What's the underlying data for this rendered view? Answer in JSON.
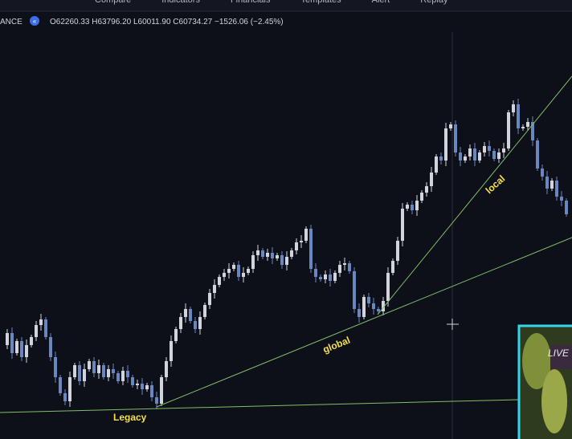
{
  "toolbar": {
    "items": [
      "Compare",
      "Indicators",
      "Financials",
      "Templates",
      "Alert",
      "Replay"
    ]
  },
  "symbol": {
    "exchange": "ANCE",
    "ohlc": "O62260.33 H63796.20 L60011.90 C60734.27 −1526.06 (−2.45%)"
  },
  "annotations": {
    "legacy": "Legacy",
    "global": "global",
    "local": "local"
  },
  "webcam": {
    "badge": "LIVE"
  },
  "chart": {
    "type": "candlestick",
    "up_color": "#d1d4dc",
    "down_color": "#6a86bf",
    "ylim": [
      43800,
      75300
    ],
    "closes": [
      50820,
      51720,
      50220,
      51120,
      49920,
      50820,
      51420,
      52320,
      52740,
      51420,
      49920,
      48420,
      47220,
      46620,
      48420,
      49320,
      48120,
      49020,
      49620,
      48720,
      49320,
      48420,
      49020,
      48720,
      48120,
      48900,
      48420,
      47820,
      47940,
      47520,
      47820,
      46920,
      46440,
      48420,
      49620,
      51120,
      52020,
      52920,
      53520,
      52620,
      52020,
      52920,
      53820,
      54720,
      55320,
      55920,
      56220,
      56520,
      56820,
      55920,
      56220,
      56520,
      57540,
      57900,
      57420,
      57720,
      57300,
      57540,
      56820,
      57420,
      57900,
      58500,
      58620,
      59520,
      56520,
      55920,
      55740,
      56100,
      55620,
      56220,
      56820,
      56940,
      56340,
      53520,
      52920,
      54420,
      53940,
      53520,
      53340,
      54120,
      56220,
      57120,
      58620,
      61020,
      61320,
      60900,
      61620,
      62220,
      62700,
      63720,
      64920,
      64620,
      67020,
      67320,
      65220,
      64620,
      64920,
      65520,
      64620,
      65220,
      65700,
      65340,
      64740,
      65220,
      65520,
      68220,
      68820,
      67020,
      67140,
      67500,
      66120,
      64020,
      63420,
      62520,
      63120,
      61920,
      61620,
      60600
    ]
  }
}
